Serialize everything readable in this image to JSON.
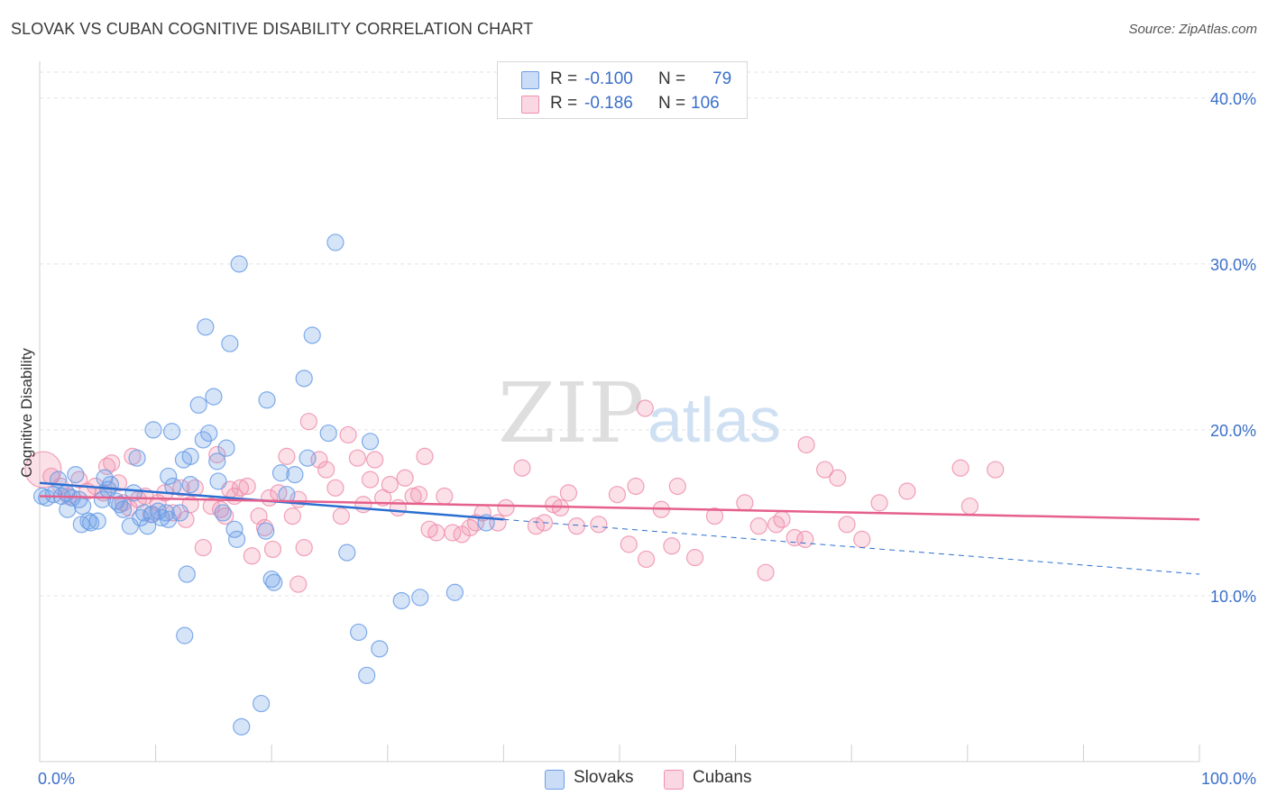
{
  "header": {
    "title": "SLOVAK VS CUBAN COGNITIVE DISABILITY CORRELATION CHART",
    "source": "Source: ZipAtlas.com"
  },
  "watermark": {
    "zip": "ZIP",
    "atlas": "atlas"
  },
  "stats": {
    "rows": [
      {
        "r_label": "R =",
        "r_value": "-0.100",
        "n_label": "N =",
        "n_value": "79",
        "color": "#6a9ee6"
      },
      {
        "r_label": "R =",
        "r_value": "-0.186",
        "n_label": "N =",
        "n_value": "106",
        "color": "#ef8fae"
      }
    ]
  },
  "legend": {
    "items": [
      {
        "label": "Slovaks",
        "color": "#6a9ee6"
      },
      {
        "label": "Cubans",
        "color": "#ef8fae"
      }
    ]
  },
  "chart_data": {
    "type": "scatter",
    "title": "SLOVAK VS CUBAN COGNITIVE DISABILITY CORRELATION CHART",
    "xlabel": "",
    "ylabel": "Cognitive Disability",
    "xlim": [
      0,
      100
    ],
    "ylim": [
      0,
      42
    ],
    "x_tick_labels": [
      "0.0%",
      "100.0%"
    ],
    "y_ticks": [
      10,
      20,
      30,
      40
    ],
    "y_tick_labels": [
      "10.0%",
      "20.0%",
      "30.0%",
      "40.0%"
    ],
    "grid": "horizontal dashed",
    "legend_position": "bottom-center",
    "series": [
      {
        "name": "Slovaks",
        "color": "#6a9ee6",
        "line_color": "#2b6fd1",
        "trend": {
          "x": [
            0,
            40
          ],
          "y": [
            16.8,
            14.6
          ],
          "extended_to": [
            100,
            11.3
          ]
        },
        "points": [
          [
            0.6,
            15.9
          ],
          [
            1.2,
            16.1
          ],
          [
            1.6,
            17.0
          ],
          [
            1.9,
            16.0
          ],
          [
            2.3,
            16.2
          ],
          [
            2.4,
            15.2
          ],
          [
            2.8,
            15.9
          ],
          [
            3.1,
            17.3
          ],
          [
            3.4,
            15.8
          ],
          [
            3.7,
            15.4
          ],
          [
            3.6,
            14.3
          ],
          [
            4.2,
            14.5
          ],
          [
            4.4,
            14.4
          ],
          [
            5.0,
            14.5
          ],
          [
            5.4,
            15.8
          ],
          [
            5.6,
            17.1
          ],
          [
            5.9,
            16.4
          ],
          [
            6.1,
            16.7
          ],
          [
            6.6,
            15.7
          ],
          [
            6.9,
            15.5
          ],
          [
            7.2,
            15.2
          ],
          [
            7.8,
            14.2
          ],
          [
            8.1,
            16.2
          ],
          [
            8.4,
            18.3
          ],
          [
            8.7,
            14.7
          ],
          [
            9.0,
            15.0
          ],
          [
            9.3,
            14.2
          ],
          [
            9.7,
            14.9
          ],
          [
            10.2,
            15.1
          ],
          [
            10.5,
            14.7
          ],
          [
            10.9,
            15.0
          ],
          [
            11.1,
            14.6
          ],
          [
            11.1,
            17.2
          ],
          [
            11.5,
            16.6
          ],
          [
            9.8,
            20.0
          ],
          [
            11.4,
            19.9
          ],
          [
            12.1,
            15.0
          ],
          [
            12.4,
            18.2
          ],
          [
            13.0,
            16.7
          ],
          [
            13.0,
            18.4
          ],
          [
            12.7,
            11.3
          ],
          [
            12.5,
            7.6
          ],
          [
            13.7,
            21.5
          ],
          [
            14.1,
            19.4
          ],
          [
            14.3,
            26.2
          ],
          [
            14.6,
            19.8
          ],
          [
            15.0,
            22.0
          ],
          [
            15.3,
            18.1
          ],
          [
            15.4,
            16.9
          ],
          [
            15.8,
            15.0
          ],
          [
            16.1,
            18.9
          ],
          [
            16.4,
            25.2
          ],
          [
            16.8,
            14.0
          ],
          [
            17.0,
            13.4
          ],
          [
            17.2,
            30.0
          ],
          [
            17.4,
            2.1
          ],
          [
            19.1,
            3.5
          ],
          [
            19.5,
            13.9
          ],
          [
            19.6,
            21.8
          ],
          [
            20.0,
            11.0
          ],
          [
            20.2,
            10.8
          ],
          [
            20.8,
            17.4
          ],
          [
            21.3,
            16.1
          ],
          [
            22.0,
            17.3
          ],
          [
            22.8,
            23.1
          ],
          [
            23.1,
            18.3
          ],
          [
            23.5,
            25.7
          ],
          [
            24.9,
            19.8
          ],
          [
            25.5,
            31.3
          ],
          [
            26.5,
            12.6
          ],
          [
            27.5,
            7.8
          ],
          [
            28.2,
            5.2
          ],
          [
            28.5,
            19.3
          ],
          [
            29.3,
            6.8
          ],
          [
            31.2,
            9.7
          ],
          [
            32.8,
            9.9
          ],
          [
            35.8,
            10.2
          ],
          [
            38.5,
            14.4
          ],
          [
            0.2,
            16.0
          ]
        ]
      },
      {
        "name": "Cubans",
        "color": "#ef8fae",
        "line_color": "#e5608c",
        "trend": {
          "x": [
            0,
            100
          ],
          "y": [
            16.0,
            14.6
          ]
        },
        "points": [
          [
            0.3,
            17.6
          ],
          [
            1.0,
            17.2
          ],
          [
            1.8,
            16.6
          ],
          [
            2.5,
            16.0
          ],
          [
            3.4,
            17.0
          ],
          [
            4.1,
            16.3
          ],
          [
            4.8,
            16.6
          ],
          [
            5.5,
            16.2
          ],
          [
            5.8,
            17.8
          ],
          [
            6.2,
            18.0
          ],
          [
            6.8,
            16.8
          ],
          [
            7.2,
            15.6
          ],
          [
            7.7,
            15.3
          ],
          [
            8.0,
            18.4
          ],
          [
            8.5,
            15.8
          ],
          [
            9.1,
            16.0
          ],
          [
            9.6,
            14.9
          ],
          [
            10.2,
            15.6
          ],
          [
            10.8,
            16.2
          ],
          [
            11.5,
            15.0
          ],
          [
            12.2,
            16.5
          ],
          [
            12.6,
            14.6
          ],
          [
            13.0,
            15.5
          ],
          [
            13.4,
            16.5
          ],
          [
            14.1,
            12.9
          ],
          [
            14.8,
            15.4
          ],
          [
            15.3,
            18.5
          ],
          [
            15.6,
            15.2
          ],
          [
            16.0,
            14.8
          ],
          [
            16.4,
            16.4
          ],
          [
            16.8,
            16.0
          ],
          [
            17.3,
            16.5
          ],
          [
            17.9,
            16.6
          ],
          [
            18.3,
            12.4
          ],
          [
            18.9,
            14.8
          ],
          [
            19.4,
            14.1
          ],
          [
            19.8,
            15.9
          ],
          [
            20.1,
            12.8
          ],
          [
            20.6,
            16.2
          ],
          [
            21.3,
            18.4
          ],
          [
            21.8,
            14.8
          ],
          [
            22.3,
            15.8
          ],
          [
            22.8,
            12.9
          ],
          [
            23.2,
            20.5
          ],
          [
            24.1,
            18.2
          ],
          [
            24.7,
            17.6
          ],
          [
            25.5,
            16.5
          ],
          [
            26.0,
            14.8
          ],
          [
            26.6,
            19.7
          ],
          [
            27.4,
            18.3
          ],
          [
            27.9,
            15.5
          ],
          [
            28.5,
            17.0
          ],
          [
            28.9,
            18.2
          ],
          [
            29.6,
            15.9
          ],
          [
            30.2,
            16.7
          ],
          [
            30.9,
            15.3
          ],
          [
            31.5,
            17.1
          ],
          [
            32.2,
            16.0
          ],
          [
            32.7,
            16.1
          ],
          [
            33.2,
            18.4
          ],
          [
            33.6,
            14.0
          ],
          [
            34.2,
            13.8
          ],
          [
            34.9,
            16.0
          ],
          [
            35.6,
            13.8
          ],
          [
            36.4,
            13.7
          ],
          [
            37.1,
            14.1
          ],
          [
            37.6,
            14.4
          ],
          [
            38.2,
            15.0
          ],
          [
            39.5,
            14.4
          ],
          [
            40.2,
            15.3
          ],
          [
            41.6,
            17.7
          ],
          [
            42.8,
            14.2
          ],
          [
            43.5,
            14.4
          ],
          [
            44.3,
            15.5
          ],
          [
            44.9,
            15.3
          ],
          [
            45.6,
            16.2
          ],
          [
            46.3,
            14.2
          ],
          [
            48.2,
            14.3
          ],
          [
            49.8,
            16.1
          ],
          [
            50.8,
            13.1
          ],
          [
            51.4,
            16.6
          ],
          [
            52.3,
            12.2
          ],
          [
            53.6,
            15.2
          ],
          [
            54.5,
            13.0
          ],
          [
            55.0,
            16.6
          ],
          [
            56.5,
            12.3
          ],
          [
            58.2,
            14.8
          ],
          [
            60.8,
            15.6
          ],
          [
            62.0,
            14.2
          ],
          [
            62.6,
            11.4
          ],
          [
            63.5,
            14.3
          ],
          [
            64.0,
            14.6
          ],
          [
            65.1,
            13.5
          ],
          [
            66.0,
            13.4
          ],
          [
            67.7,
            17.6
          ],
          [
            68.8,
            17.1
          ],
          [
            69.6,
            14.3
          ],
          [
            70.9,
            13.4
          ],
          [
            72.4,
            15.6
          ],
          [
            74.8,
            16.3
          ],
          [
            79.4,
            17.7
          ],
          [
            80.2,
            15.4
          ],
          [
            82.4,
            17.6
          ],
          [
            66.1,
            19.1
          ],
          [
            52.2,
            21.3
          ],
          [
            22.3,
            10.7
          ]
        ]
      }
    ]
  }
}
